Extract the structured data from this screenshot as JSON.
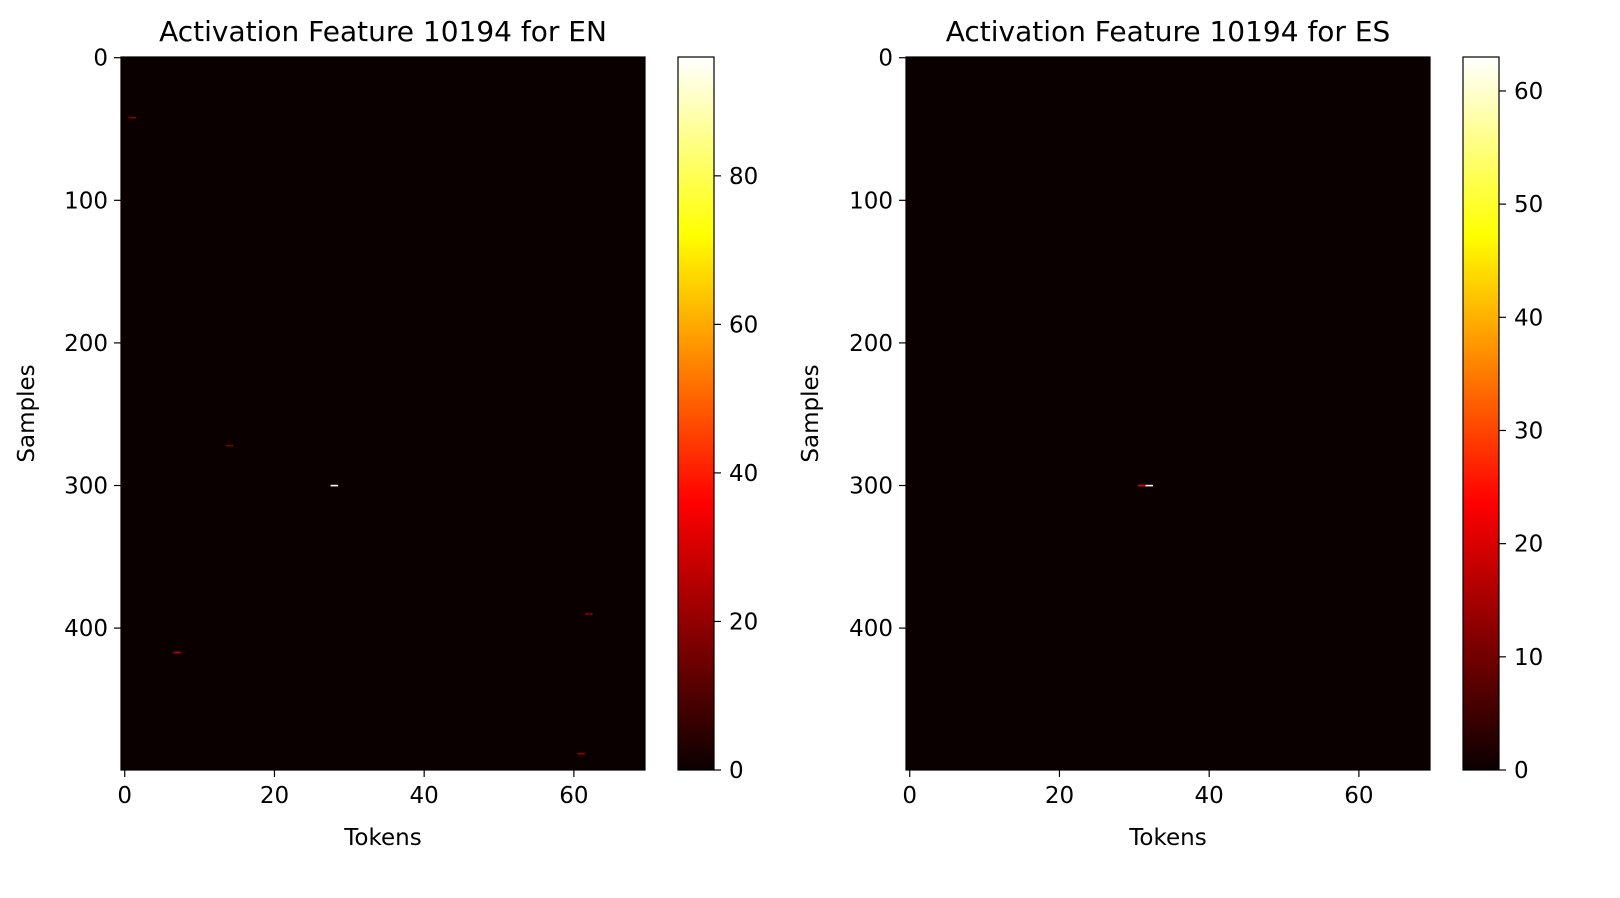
{
  "colormap": [
    "#0b0000",
    "#ff0000",
    "#ffff00",
    "#ffffff"
  ],
  "chart_data": [
    {
      "type": "heatmap",
      "title": "Activation Feature 10194 for EN",
      "xlabel": "Tokens",
      "ylabel": "Samples",
      "xlim": [
        -0.5,
        69.5
      ],
      "ylim": [
        499.5,
        -0.5
      ],
      "xticks": [
        0,
        20,
        40,
        60
      ],
      "yticks": [
        0,
        100,
        200,
        300,
        400
      ],
      "background_value": 0,
      "colorbar": {
        "min": 0,
        "max": 96,
        "ticks": [
          0,
          20,
          40,
          60,
          80
        ]
      },
      "hotspots": [
        {
          "token": 1,
          "sample": 42,
          "value": 18
        },
        {
          "token": 14,
          "sample": 272,
          "value": 16
        },
        {
          "token": 28,
          "sample": 300,
          "value": 96
        },
        {
          "token": 7,
          "sample": 417,
          "value": 28
        },
        {
          "token": 62,
          "sample": 390,
          "value": 20
        },
        {
          "token": 61,
          "sample": 488,
          "value": 22
        }
      ]
    },
    {
      "type": "heatmap",
      "title": "Activation Feature 10194 for ES",
      "xlabel": "Tokens",
      "ylabel": "Samples",
      "xlim": [
        -0.5,
        69.5
      ],
      "ylim": [
        499.5,
        -0.5
      ],
      "xticks": [
        0,
        20,
        40,
        60
      ],
      "yticks": [
        0,
        100,
        200,
        300,
        400
      ],
      "background_value": 0,
      "colorbar": {
        "min": 0,
        "max": 63,
        "ticks": [
          0,
          10,
          20,
          30,
          40,
          50,
          60
        ]
      },
      "hotspots": [
        {
          "token": 31,
          "sample": 300,
          "value": 22
        },
        {
          "token": 32,
          "sample": 300,
          "value": 63
        }
      ]
    }
  ]
}
